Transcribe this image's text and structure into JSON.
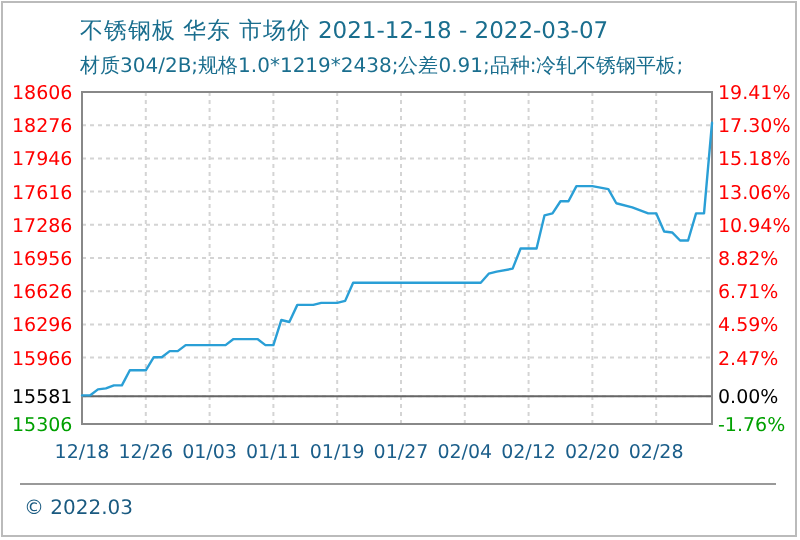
{
  "chart_data": {
    "type": "line",
    "title": "不锈钢板 华东 市场价 2021-12-18 - 2022-03-07",
    "subtitle": "材质304/2B;规格1.0*1219*2438;公差0.91;品种:冷轧不锈钢平板;",
    "annotations": [
      "© 2022.03"
    ],
    "series": [
      {
        "color": "#2a9fd6",
        "x": [
          "2021-12-18",
          "2021-12-19",
          "2021-12-20",
          "2021-12-21",
          "2021-12-22",
          "2021-12-23",
          "2021-12-24",
          "2021-12-26",
          "2021-12-27",
          "2021-12-28",
          "2021-12-29",
          "2021-12-30",
          "2021-12-31",
          "2022-01-05",
          "2022-01-06",
          "2022-01-09",
          "2022-01-10",
          "2022-01-11",
          "2022-01-12",
          "2022-01-13",
          "2022-01-14",
          "2022-01-16",
          "2022-01-17",
          "2022-01-19",
          "2022-01-20",
          "2022-01-21",
          "2022-02-06",
          "2022-02-07",
          "2022-02-08",
          "2022-02-10",
          "2022-02-11",
          "2022-02-13",
          "2022-02-14",
          "2022-02-15",
          "2022-02-16",
          "2022-02-17",
          "2022-02-18",
          "2022-02-20",
          "2022-02-22",
          "2022-02-23",
          "2022-02-25",
          "2022-02-27",
          "2022-02-28",
          "2022-03-01",
          "2022-03-02",
          "2022-03-03",
          "2022-03-04",
          "2022-03-05",
          "2022-03-06",
          "2022-03-07"
        ],
        "values": [
          15590,
          15590,
          15650,
          15660,
          15690,
          15690,
          15840,
          15840,
          15970,
          15970,
          16030,
          16030,
          16090,
          16090,
          16150,
          16150,
          16090,
          16090,
          16340,
          16320,
          16490,
          16490,
          16510,
          16510,
          16530,
          16710,
          16710,
          16800,
          16820,
          16850,
          17050,
          17050,
          17380,
          17400,
          17520,
          17520,
          17670,
          17670,
          17640,
          17500,
          17460,
          17400,
          17400,
          17220,
          17210,
          17130,
          17130,
          17400,
          17400,
          18300
        ]
      }
    ],
    "xlim": [
      "2021-12-18",
      "2022-03-07"
    ],
    "xticks": [
      {
        "value": "2021-12-18",
        "label": "12/18"
      },
      {
        "value": "2021-12-26",
        "label": "12/26"
      },
      {
        "value": "2022-01-03",
        "label": "01/03"
      },
      {
        "value": "2022-01-11",
        "label": "01/11"
      },
      {
        "value": "2022-01-19",
        "label": "01/19"
      },
      {
        "value": "2022-01-27",
        "label": "01/27"
      },
      {
        "value": "2022-02-04",
        "label": "02/04"
      },
      {
        "value": "2022-02-12",
        "label": "02/12"
      },
      {
        "value": "2022-02-20",
        "label": "02/20"
      },
      {
        "value": "2022-02-28",
        "label": "02/28"
      }
    ],
    "ylim": [
      15306,
      18606
    ],
    "yticks": [
      18606,
      18276,
      17946,
      17616,
      17286,
      16956,
      16626,
      16296,
      15966,
      15581,
      15306
    ],
    "y2lim": [
      -1.76,
      19.41
    ],
    "y2ticks": [
      {
        "value": 19.41,
        "label": "19.41%"
      },
      {
        "value": 17.3,
        "label": "17.30%"
      },
      {
        "value": 15.18,
        "label": "15.18%"
      },
      {
        "value": 13.06,
        "label": "13.06%"
      },
      {
        "value": 10.94,
        "label": "10.94%"
      },
      {
        "value": 8.82,
        "label": "8.82%"
      },
      {
        "value": 6.71,
        "label": "6.71%"
      },
      {
        "value": 4.59,
        "label": "4.59%"
      },
      {
        "value": 2.47,
        "label": "2.47%"
      },
      {
        "value": 0,
        "label": "0.00%"
      },
      {
        "value": -1.76,
        "label": "-1.76%"
      }
    ],
    "ref_lines": [
      {
        "axis": "y",
        "value": 15581,
        "color": "#666666"
      }
    ],
    "grid": true,
    "marker": "none",
    "line_style": "solid"
  }
}
